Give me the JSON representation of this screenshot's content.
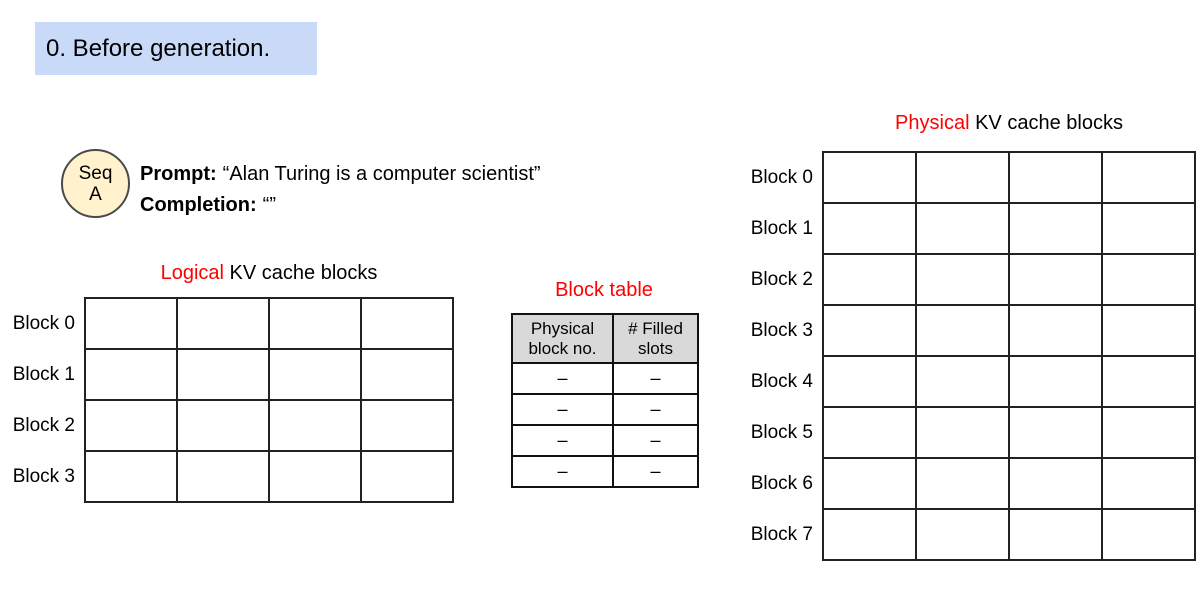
{
  "step": {
    "label": "0. Before generation."
  },
  "sequence": {
    "badge_top": "Seq",
    "badge_bottom": "A",
    "prompt_label": "Prompt:",
    "prompt_value": "“Alan Turing is a computer scientist”",
    "completion_label": "Completion:",
    "completion_value": "“”"
  },
  "logical": {
    "title_accent": "Logical",
    "title_rest": " KV cache blocks",
    "cols": 4,
    "row_labels": [
      "Block 0",
      "Block 1",
      "Block 2",
      "Block 3"
    ]
  },
  "block_table": {
    "title": "Block table",
    "headers": [
      "Physical block no.",
      "# Filled slots"
    ],
    "rows": [
      [
        "–",
        "–"
      ],
      [
        "–",
        "–"
      ],
      [
        "–",
        "–"
      ],
      [
        "–",
        "–"
      ]
    ]
  },
  "physical": {
    "title_accent": "Physical",
    "title_rest": " KV cache blocks",
    "cols": 4,
    "row_labels": [
      "Block 0",
      "Block 1",
      "Block 2",
      "Block 3",
      "Block 4",
      "Block 5",
      "Block 6",
      "Block 7"
    ]
  },
  "colors": {
    "step_bg": "#c9daf8",
    "seq_fill": "#fff2cc",
    "accent_red": "#ff0000",
    "table_header_bg": "#d9d9d9"
  }
}
